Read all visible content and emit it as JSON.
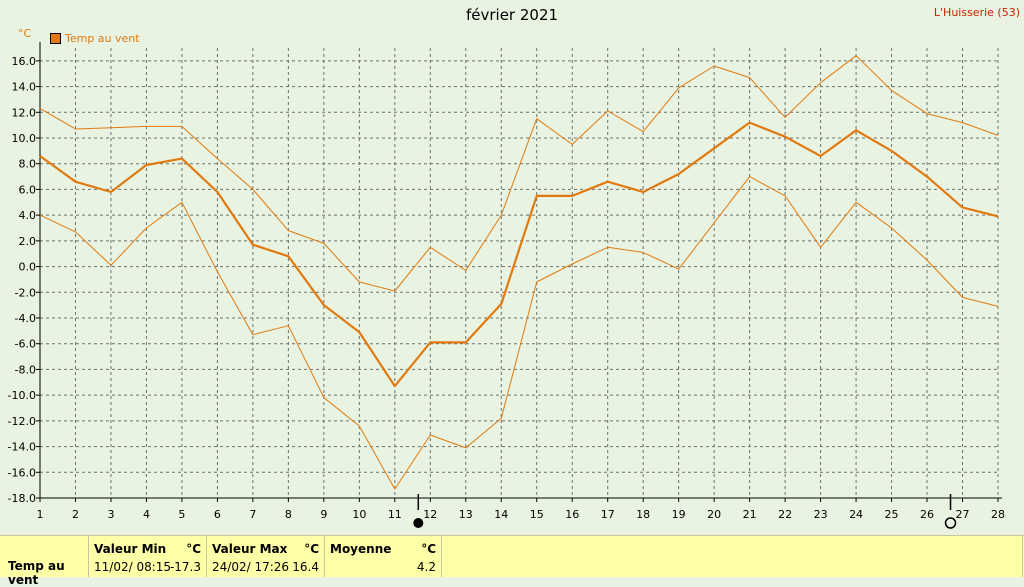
{
  "header": {
    "title": "février 2021",
    "station": "L'Huisserie (53)",
    "unit": "°C",
    "legend_label": "Temp au vent"
  },
  "chart_data": {
    "type": "line",
    "title": "février 2021",
    "ylabel": "°C",
    "xlabel": "",
    "ylim": [
      -18,
      17
    ],
    "xlim": [
      1,
      28
    ],
    "grid": true,
    "legend": "top-left",
    "yticks": [
      "16.0",
      "14.0",
      "12.0",
      "10.0",
      "8.0",
      "6.0",
      "4.0",
      "2.0",
      "0.0",
      "-2.0",
      "-4.0",
      "-6.0",
      "-8.0",
      "-10.0",
      "-12.0",
      "-14.0",
      "-16.0",
      "-18.0"
    ],
    "x": [
      1,
      2,
      3,
      4,
      5,
      6,
      7,
      8,
      9,
      10,
      11,
      12,
      13,
      14,
      15,
      16,
      17,
      18,
      19,
      20,
      21,
      22,
      23,
      24,
      25,
      26,
      27,
      28
    ],
    "series": [
      {
        "name": "Temp au vent",
        "role": "mean",
        "values": [
          8.6,
          6.6,
          5.8,
          7.9,
          8.4,
          5.8,
          1.7,
          0.8,
          -3.0,
          -5.1,
          -9.3,
          -5.9,
          -5.9,
          -2.9,
          5.5,
          5.5,
          6.6,
          5.8,
          7.2,
          9.2,
          11.2,
          10.1,
          8.6,
          10.6,
          9.0,
          7.0,
          4.6,
          3.9
        ]
      },
      {
        "name": "",
        "role": "max",
        "values": [
          12.3,
          10.7,
          10.8,
          10.9,
          10.9,
          8.4,
          6.0,
          2.8,
          1.8,
          -1.2,
          -1.9,
          1.5,
          -0.3,
          4.0,
          11.5,
          9.5,
          12.1,
          10.5,
          13.9,
          15.6,
          14.7,
          11.6,
          14.3,
          16.4,
          13.7,
          11.9,
          11.2,
          10.2
        ]
      },
      {
        "name": "",
        "role": "min",
        "values": [
          4.0,
          2.7,
          0.1,
          3.0,
          5.0,
          -0.4,
          -5.3,
          -4.6,
          -10.2,
          -12.4,
          -17.3,
          -13.1,
          -14.1,
          -11.8,
          -1.2,
          0.2,
          1.5,
          1.1,
          -0.2,
          3.4,
          7.0,
          5.5,
          1.5,
          5.0,
          3.0,
          0.5,
          -2.4,
          -3.1
        ]
      }
    ],
    "markers": [
      {
        "day": 12,
        "symbol": "new-moon"
      },
      {
        "day": 27,
        "symbol": "full-moon"
      }
    ],
    "colors": {
      "line": "#e07a10",
      "grid": "#707070",
      "axis": "#000000"
    }
  },
  "stats": {
    "param_label": "Temp au vent",
    "min": {
      "header": "Valeur Min",
      "unit": "°C",
      "timestamp": "11/02/  08:15",
      "value": "-17.3"
    },
    "max": {
      "header": "Valeur Max",
      "unit": "°C",
      "timestamp": "24/02/  17:26",
      "value": "16.4"
    },
    "mean": {
      "header": "Moyenne",
      "unit": "°C",
      "value": "4.2"
    }
  }
}
